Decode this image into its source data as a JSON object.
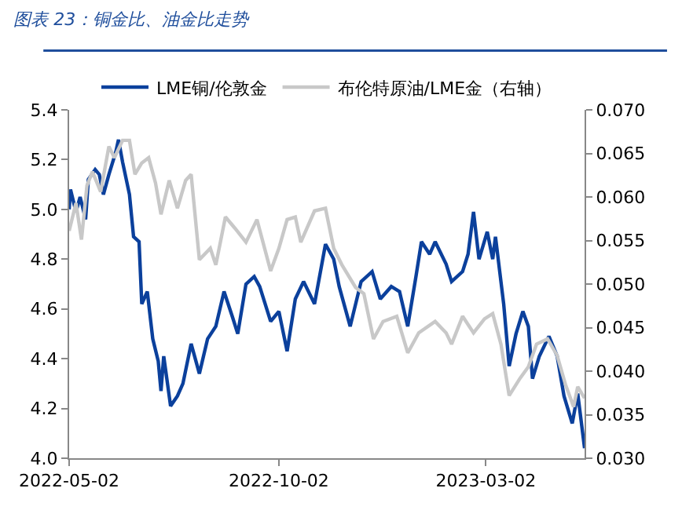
{
  "chart_data": {
    "type": "line",
    "title": "图表 23：铜金比、油金比走势",
    "legend": "top",
    "grid": false,
    "marker": "none",
    "line_style": "solid",
    "xlim": [
      "2022-05-02",
      "2023-05-13"
    ],
    "xticks": [
      {
        "value": "2022-05-02",
        "label": "2022-05-02"
      },
      {
        "value": "2022-10-02",
        "label": "2022-10-02"
      },
      {
        "value": "2023-03-02",
        "label": "2023-03-02"
      }
    ],
    "ylim": [
      4.0,
      5.4
    ],
    "yticks": [
      {
        "value": 4.0,
        "label": "4.0"
      },
      {
        "value": 4.2,
        "label": "4.2"
      },
      {
        "value": 4.4,
        "label": "4.4"
      },
      {
        "value": 4.6,
        "label": "4.6"
      },
      {
        "value": 4.8,
        "label": "4.8"
      },
      {
        "value": 5.0,
        "label": "5.0"
      },
      {
        "value": 5.2,
        "label": "5.2"
      },
      {
        "value": 5.4,
        "label": "5.4"
      }
    ],
    "y2lim": [
      0.03,
      0.07
    ],
    "y2ticks": [
      {
        "value": 0.03,
        "label": "0.030"
      },
      {
        "value": 0.035,
        "label": "0.035"
      },
      {
        "value": 0.04,
        "label": "0.040"
      },
      {
        "value": 0.045,
        "label": "0.045"
      },
      {
        "value": 0.05,
        "label": "0.050"
      },
      {
        "value": 0.055,
        "label": "0.055"
      },
      {
        "value": 0.06,
        "label": "0.060"
      },
      {
        "value": 0.065,
        "label": "0.065"
      },
      {
        "value": 0.07,
        "label": "0.070"
      }
    ],
    "series": [
      {
        "name": "LME铜/伦敦金",
        "color": "#0b409c",
        "x": [
          "2022-05-02",
          "2022-05-03",
          "2022-05-07",
          "2022-05-10",
          "2022-05-14",
          "2022-05-16",
          "2022-05-21",
          "2022-05-24",
          "2022-05-27",
          "2022-05-31",
          "2022-06-05",
          "2022-06-07",
          "2022-06-10",
          "2022-06-15",
          "2022-06-18",
          "2022-06-22",
          "2022-06-24",
          "2022-06-28",
          "2022-07-02",
          "2022-07-06",
          "2022-07-08",
          "2022-07-10",
          "2022-07-15",
          "2022-07-20",
          "2022-07-24",
          "2022-07-30",
          "2022-08-05",
          "2022-08-11",
          "2022-08-17",
          "2022-08-23",
          "2022-08-29",
          "2022-09-02",
          "2022-09-08",
          "2022-09-14",
          "2022-09-18",
          "2022-09-26",
          "2022-10-02",
          "2022-10-08",
          "2022-10-14",
          "2022-10-20",
          "2022-10-28",
          "2022-11-05",
          "2022-11-11",
          "2022-11-15",
          "2022-11-23",
          "2022-12-01",
          "2022-12-09",
          "2022-12-15",
          "2022-12-23",
          "2022-12-29",
          "2023-01-04",
          "2023-01-10",
          "2023-01-14",
          "2023-01-20",
          "2023-01-24",
          "2023-02-01",
          "2023-02-05",
          "2023-02-13",
          "2023-02-17",
          "2023-02-21",
          "2023-02-25",
          "2023-03-03",
          "2023-03-07",
          "2023-03-09",
          "2023-03-15",
          "2023-03-19",
          "2023-03-24",
          "2023-03-29",
          "2023-04-02",
          "2023-04-05",
          "2023-04-10",
          "2023-04-17",
          "2023-04-23",
          "2023-04-28",
          "2023-05-04",
          "2023-05-08",
          "2023-05-13"
        ],
        "values": [
          5.0,
          5.08,
          4.99,
          5.05,
          4.96,
          5.12,
          5.16,
          5.14,
          5.06,
          5.14,
          5.23,
          5.28,
          5.19,
          5.06,
          4.89,
          4.87,
          4.62,
          4.67,
          4.48,
          4.39,
          4.27,
          4.41,
          4.21,
          4.25,
          4.3,
          4.46,
          4.34,
          4.48,
          4.53,
          4.67,
          4.57,
          4.5,
          4.7,
          4.73,
          4.69,
          4.55,
          4.59,
          4.43,
          4.64,
          4.71,
          4.62,
          4.86,
          4.8,
          4.69,
          4.53,
          4.71,
          4.75,
          4.64,
          4.69,
          4.67,
          4.53,
          4.73,
          4.87,
          4.82,
          4.87,
          4.78,
          4.71,
          4.75,
          4.82,
          4.99,
          4.8,
          4.91,
          4.8,
          4.89,
          4.62,
          4.37,
          4.5,
          4.59,
          4.53,
          4.32,
          4.41,
          4.49,
          4.41,
          4.25,
          4.14,
          4.26,
          4.04
        ]
      },
      {
        "name": "布伦特原油/LME金（右轴）",
        "color": "#c8c8c8",
        "axis": "y2",
        "x": [
          "2022-05-02",
          "2022-05-07",
          "2022-05-11",
          "2022-05-15",
          "2022-05-19",
          "2022-05-25",
          "2022-05-31",
          "2022-06-04",
          "2022-06-10",
          "2022-06-15",
          "2022-06-19",
          "2022-06-24",
          "2022-06-29",
          "2022-07-04",
          "2022-07-08",
          "2022-07-14",
          "2022-07-20",
          "2022-07-26",
          "2022-07-30",
          "2022-08-05",
          "2022-08-13",
          "2022-08-17",
          "2022-08-24",
          "2022-08-31",
          "2022-09-08",
          "2022-09-16",
          "2022-09-26",
          "2022-10-02",
          "2022-10-08",
          "2022-10-14",
          "2022-10-18",
          "2022-10-28",
          "2022-11-05",
          "2022-11-11",
          "2022-11-17",
          "2022-11-27",
          "2022-12-03",
          "2022-12-10",
          "2022-12-17",
          "2022-12-27",
          "2023-01-04",
          "2023-01-12",
          "2023-01-24",
          "2023-02-01",
          "2023-02-05",
          "2023-02-13",
          "2023-02-21",
          "2023-03-01",
          "2023-03-07",
          "2023-03-13",
          "2023-03-19",
          "2023-03-27",
          "2023-04-02",
          "2023-04-08",
          "2023-04-16",
          "2023-04-23",
          "2023-04-29",
          "2023-05-05",
          "2023-05-08",
          "2023-05-13"
        ],
        "values": [
          0.0561,
          0.0593,
          0.0551,
          0.0613,
          0.0629,
          0.0606,
          0.0658,
          0.0645,
          0.0665,
          0.0665,
          0.0626,
          0.0639,
          0.0645,
          0.0616,
          0.058,
          0.0619,
          0.0587,
          0.0619,
          0.0626,
          0.0528,
          0.0541,
          0.0522,
          0.0577,
          0.0564,
          0.0548,
          0.0574,
          0.0515,
          0.0541,
          0.0574,
          0.0577,
          0.0548,
          0.0584,
          0.0587,
          0.0541,
          0.0522,
          0.0496,
          0.0489,
          0.0437,
          0.0457,
          0.0463,
          0.0421,
          0.0444,
          0.0457,
          0.0444,
          0.0431,
          0.0463,
          0.0444,
          0.046,
          0.0466,
          0.0431,
          0.0372,
          0.0392,
          0.0405,
          0.0431,
          0.0437,
          0.0418,
          0.0385,
          0.0359,
          0.0382,
          0.0369
        ]
      }
    ]
  }
}
